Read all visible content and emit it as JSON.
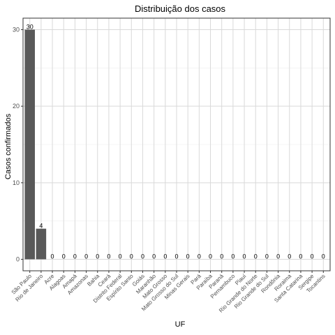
{
  "chart_data": {
    "type": "bar",
    "title": "Distribuição dos casos",
    "xlabel": "UF",
    "ylabel": "Casos confirmados",
    "categories": [
      "São Paulo",
      "Rio de Janeiro",
      "Acre",
      "Alagoas",
      "Amapá",
      "Amazonas",
      "Bahia",
      "Ceará",
      "Distrito Federal",
      "Espírito Santo",
      "Goiás",
      "Maranhão",
      "Mato Grosso",
      "Mato Grosso do Sul",
      "Minas Gerais",
      "Pará",
      "Paraíba",
      "Paraná",
      "Pernambuco",
      "Piauí",
      "Rio Grande do Norte",
      "Rio Grande do Sul",
      "Rondônia",
      "Roraima",
      "Santa Catarina",
      "Sergipe",
      "Tocantins"
    ],
    "values": [
      30,
      4,
      0,
      0,
      0,
      0,
      0,
      0,
      0,
      0,
      0,
      0,
      0,
      0,
      0,
      0,
      0,
      0,
      0,
      0,
      0,
      0,
      0,
      0,
      0,
      0,
      0
    ],
    "ylim": [
      -1.5,
      31.5
    ],
    "yticks": [
      0,
      10,
      20,
      30
    ],
    "grid": true,
    "legend": "none",
    "colors": {
      "bar": "#595959",
      "panel_border": "#333333",
      "grid_major": "#d9d9d9",
      "grid_minor": "#ebebeb"
    }
  }
}
